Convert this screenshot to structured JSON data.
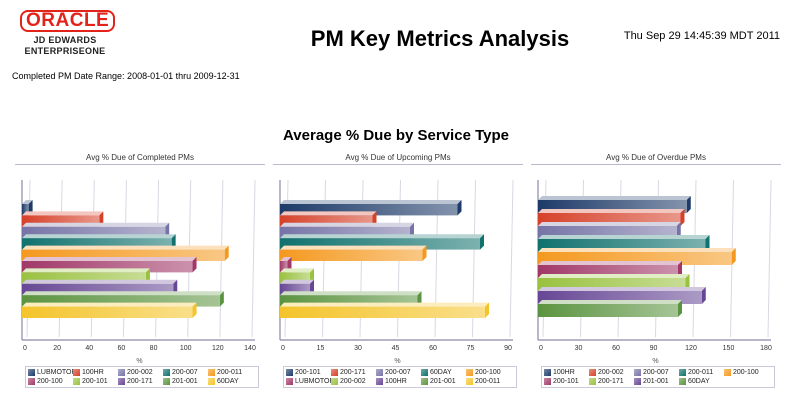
{
  "header": {
    "logo_text": "ORACLE",
    "logo_sub1": "JD EDWARDS",
    "logo_sub2": "ENTERPRISEONE",
    "title": "PM Key Metrics Analysis",
    "timestamp": "Thu Sep 29 14:45:39 MDT 2011",
    "date_range": "Completed PM Date Range: 2008-01-01 thru 2009-12-31"
  },
  "main_title": "Average % Due by Service Type",
  "palette": [
    "#1d3a68",
    "#d6412a",
    "#7674a6",
    "#10716d",
    "#f4991f",
    "#a13868",
    "#99c23f",
    "#674795",
    "#5b9440",
    "#f4c42b"
  ],
  "chart_data": [
    {
      "type": "bar",
      "orientation": "horizontal",
      "title": "Avg % Due of Completed PMs",
      "xlabel": "%",
      "xlim": [
        0,
        140
      ],
      "ticks": [
        "0",
        "20",
        "40",
        "60",
        "80",
        "100",
        "120",
        "140"
      ],
      "legend": "bottom",
      "categories": [
        "LUBMOTOR",
        "100HR",
        "200-002",
        "200-007",
        "200-011",
        "200-100",
        "200-101",
        "200-171",
        "201-001",
        "60DAY"
      ],
      "values": [
        1,
        45,
        86,
        90,
        123,
        103,
        74,
        91,
        120,
        103
      ]
    },
    {
      "type": "bar",
      "orientation": "horizontal",
      "title": "Avg % Due of Upcoming PMs",
      "xlabel": "%",
      "xlim": [
        0,
        90
      ],
      "ticks": [
        "0",
        "15",
        "30",
        "45",
        "60",
        "75",
        "90"
      ],
      "legend": "bottom",
      "categories": [
        "200-101",
        "200-171",
        "200-007",
        "60DAY",
        "200-100",
        "LUBMOTOR",
        "200-002",
        "100HR",
        "201-001",
        "200-011"
      ],
      "values": [
        69,
        35,
        50,
        78,
        55,
        1,
        10,
        10,
        53,
        80
      ]
    },
    {
      "type": "bar",
      "orientation": "horizontal",
      "title": "Avg % Due of Overdue PMs",
      "xlabel": "%",
      "xlim": [
        0,
        180
      ],
      "ticks": [
        "0",
        "30",
        "60",
        "90",
        "120",
        "150",
        "180"
      ],
      "legend": "bottom",
      "categories": [
        "100HR",
        "200-002",
        "200-007",
        "200-011",
        "200-100",
        "200-101",
        "200-171",
        "201-001",
        "60DAY"
      ],
      "values": [
        115,
        110,
        107,
        130,
        151,
        108,
        114,
        127,
        108
      ]
    }
  ]
}
